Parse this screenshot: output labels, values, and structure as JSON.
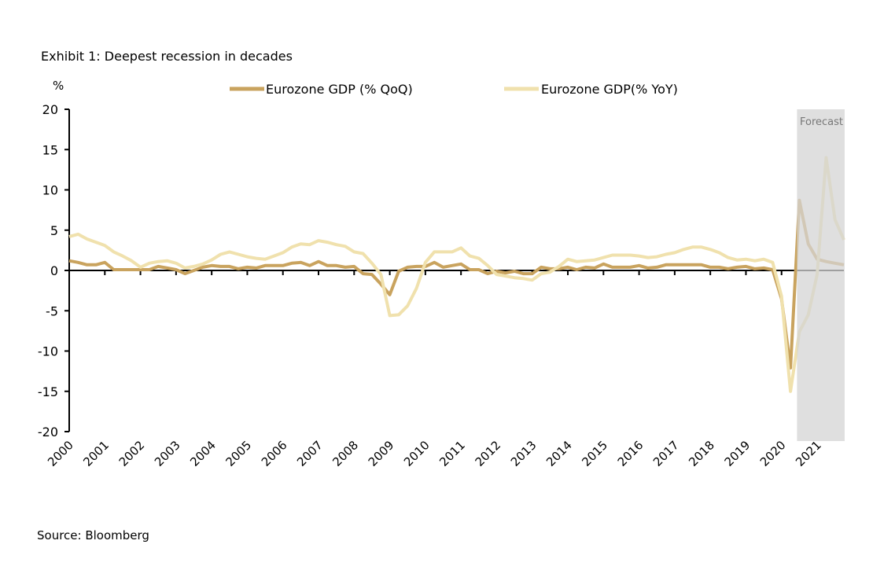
{
  "chart_data": {
    "type": "line",
    "title": "Exhibit 1: Deepest recession in decades",
    "ylabel": "%",
    "source": "Source: Bloomberg",
    "ylim": [
      -20,
      20
    ],
    "yticks": [
      20,
      15,
      10,
      5,
      0,
      -5,
      -10,
      -15,
      -20
    ],
    "x_tick_labels": [
      "2000",
      "2001",
      "2002",
      "2003",
      "2004",
      "2005",
      "2006",
      "2007",
      "2008",
      "2009",
      "2010",
      "2011",
      "2012",
      "2013",
      "2014",
      "2015",
      "2016",
      "2017",
      "2018",
      "2019",
      "2020",
      "2021"
    ],
    "frequency": "quarterly",
    "x_start": "2000 Q1",
    "x_end": "2021 Q4",
    "legend_position": "top",
    "grid": false,
    "annotation": {
      "label": "Forecast",
      "from": "2020 Q3",
      "to": "2021 Q4",
      "color": "#d4d4d4"
    },
    "series": [
      {
        "name": "Eurozone GDP (% QoQ)",
        "color": "#c9a35e",
        "values": [
          1.2,
          1.0,
          0.7,
          0.7,
          1.0,
          0.1,
          0.1,
          0.1,
          0.1,
          0.1,
          0.5,
          0.3,
          0.1,
          -0.4,
          0.0,
          0.4,
          0.6,
          0.5,
          0.5,
          0.2,
          0.4,
          0.3,
          0.6,
          0.6,
          0.6,
          0.9,
          1.0,
          0.6,
          1.1,
          0.6,
          0.6,
          0.4,
          0.5,
          -0.4,
          -0.5,
          -1.7,
          -3.0,
          -0.1,
          0.4,
          0.5,
          0.5,
          1.0,
          0.4,
          0.6,
          0.8,
          0.1,
          0.1,
          -0.4,
          -0.1,
          -0.3,
          -0.1,
          -0.4,
          -0.4,
          0.4,
          0.2,
          0.2,
          0.4,
          0.1,
          0.4,
          0.3,
          0.8,
          0.4,
          0.4,
          0.4,
          0.6,
          0.3,
          0.4,
          0.7,
          0.7,
          0.7,
          0.7,
          0.7,
          0.4,
          0.4,
          0.2,
          0.4,
          0.5,
          0.2,
          0.3,
          0.1,
          -3.5,
          -12.1,
          8.7,
          3.3,
          1.4,
          1.1,
          0.9,
          0.7
        ]
      },
      {
        "name": "Eurozone GDP(% YoY)",
        "color": "#f0e1ad",
        "values": [
          4.2,
          4.5,
          3.9,
          3.5,
          3.1,
          2.3,
          1.8,
          1.2,
          0.4,
          0.9,
          1.1,
          1.2,
          0.9,
          0.3,
          0.5,
          0.8,
          1.3,
          2.0,
          2.3,
          2.0,
          1.7,
          1.5,
          1.4,
          1.8,
          2.2,
          2.9,
          3.3,
          3.2,
          3.7,
          3.5,
          3.2,
          3.0,
          2.3,
          2.1,
          0.9,
          -0.5,
          -5.6,
          -5.5,
          -4.4,
          -2.2,
          1.0,
          2.3,
          2.3,
          2.3,
          2.8,
          1.8,
          1.5,
          0.6,
          -0.5,
          -0.7,
          -0.9,
          -1.0,
          -1.2,
          -0.4,
          -0.2,
          0.5,
          1.4,
          1.1,
          1.2,
          1.3,
          1.6,
          1.9,
          1.9,
          1.9,
          1.8,
          1.6,
          1.7,
          2.0,
          2.2,
          2.6,
          2.9,
          2.9,
          2.6,
          2.2,
          1.6,
          1.3,
          1.4,
          1.2,
          1.4,
          1.0,
          -3.2,
          -15.0,
          -7.6,
          -5.5,
          -0.5,
          14.0,
          6.3,
          3.8
        ]
      }
    ]
  }
}
